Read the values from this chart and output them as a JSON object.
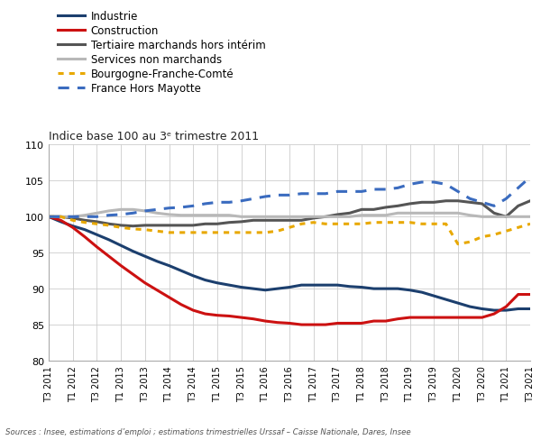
{
  "title": "Indice base 100 au 3ᵉ trimestre 2011",
  "source": "Sources : Insee, estimations d’emploi ; estimations trimestrielles Urssaf – Caisse Nationale, Dares, Insee",
  "ylim": [
    80,
    110
  ],
  "yticks": [
    80,
    85,
    90,
    95,
    100,
    105,
    110
  ],
  "xlabel_labels": [
    "T3 2011",
    "T1 2012",
    "T3 2012",
    "T1 2013",
    "T3 2013",
    "T1 2014",
    "T3 2014",
    "T1 2015",
    "T3 2015",
    "T1 2016",
    "T3 2016",
    "T1 2017",
    "T3 2017",
    "T1 2018",
    "T3 2018",
    "T1 2019",
    "T3 2019",
    "T1 2020",
    "T3 2020",
    "T1 2021",
    "T3 2021"
  ],
  "legend_entries": [
    {
      "label": "Industrie",
      "color": "#1c3f6e",
      "linestyle": "solid",
      "linewidth": 2.2
    },
    {
      "label": "Construction",
      "color": "#cc1111",
      "linestyle": "solid",
      "linewidth": 2.2
    },
    {
      "label": "Tertiaire marchands hors intérim",
      "color": "#555555",
      "linestyle": "solid",
      "linewidth": 2.2
    },
    {
      "label": "Services non marchands",
      "color": "#b8b8b8",
      "linestyle": "solid",
      "linewidth": 2.2
    },
    {
      "label": "Bourgogne-Franche-Comté",
      "color": "#e8a800",
      "linestyle": "dotted",
      "linewidth": 2.2
    },
    {
      "label": "France Hors Mayotte",
      "color": "#3a6bbf",
      "linestyle": "dashed",
      "linewidth": 2.2
    }
  ],
  "series": {
    "Industrie": [
      100.0,
      99.3,
      98.7,
      98.2,
      97.5,
      96.8,
      96.0,
      95.2,
      94.5,
      93.8,
      93.2,
      92.5,
      91.8,
      91.2,
      90.8,
      90.5,
      90.2,
      90.0,
      89.8,
      90.0,
      90.2,
      90.5,
      90.5,
      90.5,
      90.5,
      90.3,
      90.2,
      90.0,
      90.0,
      90.0,
      89.8,
      89.5,
      89.0,
      88.5,
      88.0,
      87.5,
      87.2,
      87.0,
      87.0,
      87.2,
      87.2
    ],
    "Construction": [
      100.0,
      99.5,
      98.5,
      97.2,
      95.8,
      94.5,
      93.2,
      92.0,
      90.8,
      89.8,
      88.8,
      87.8,
      87.0,
      86.5,
      86.3,
      86.2,
      86.0,
      85.8,
      85.5,
      85.3,
      85.2,
      85.0,
      85.0,
      85.0,
      85.2,
      85.2,
      85.2,
      85.5,
      85.5,
      85.8,
      86.0,
      86.0,
      86.0,
      86.0,
      86.0,
      86.0,
      86.0,
      86.5,
      87.5,
      89.2,
      89.2
    ],
    "Tertiaire marchands hors interim": [
      100.0,
      100.0,
      99.8,
      99.5,
      99.3,
      99.0,
      98.8,
      98.7,
      98.8,
      98.8,
      98.8,
      98.8,
      98.8,
      99.0,
      99.0,
      99.2,
      99.3,
      99.5,
      99.5,
      99.5,
      99.5,
      99.5,
      99.8,
      100.0,
      100.3,
      100.5,
      101.0,
      101.0,
      101.3,
      101.5,
      101.8,
      102.0,
      102.0,
      102.2,
      102.2,
      102.0,
      101.8,
      100.5,
      100.0,
      101.5,
      102.2
    ],
    "Services non marchands": [
      100.0,
      100.0,
      100.0,
      100.2,
      100.5,
      100.8,
      101.0,
      101.0,
      100.8,
      100.5,
      100.3,
      100.2,
      100.2,
      100.2,
      100.2,
      100.2,
      100.0,
      100.0,
      100.0,
      100.0,
      100.0,
      100.0,
      100.0,
      100.0,
      100.0,
      100.0,
      100.2,
      100.2,
      100.2,
      100.5,
      100.5,
      100.5,
      100.5,
      100.5,
      100.5,
      100.2,
      100.0,
      100.0,
      100.0,
      100.0,
      100.0
    ],
    "Bourgogne-Franche-Comte": [
      100.0,
      100.0,
      99.5,
      99.2,
      99.0,
      98.8,
      98.5,
      98.3,
      98.2,
      98.0,
      97.8,
      97.8,
      97.8,
      97.8,
      97.8,
      97.8,
      97.8,
      97.8,
      97.8,
      98.0,
      98.5,
      99.0,
      99.2,
      99.0,
      99.0,
      99.0,
      99.0,
      99.2,
      99.2,
      99.2,
      99.2,
      99.0,
      99.0,
      99.0,
      96.2,
      96.5,
      97.2,
      97.5,
      98.0,
      98.5,
      99.0
    ],
    "France Hors Mayotte": [
      100.0,
      100.0,
      100.0,
      100.0,
      100.0,
      100.2,
      100.3,
      100.5,
      100.8,
      101.0,
      101.2,
      101.3,
      101.5,
      101.8,
      102.0,
      102.0,
      102.2,
      102.5,
      102.8,
      103.0,
      103.0,
      103.2,
      103.2,
      103.2,
      103.5,
      103.5,
      103.5,
      103.8,
      103.8,
      104.0,
      104.5,
      104.8,
      104.8,
      104.5,
      103.5,
      102.5,
      102.0,
      101.5,
      102.5,
      104.0,
      105.5
    ]
  },
  "background_color": "#ffffff",
  "grid_color": "#cccccc",
  "spine_color": "#aaaaaa"
}
